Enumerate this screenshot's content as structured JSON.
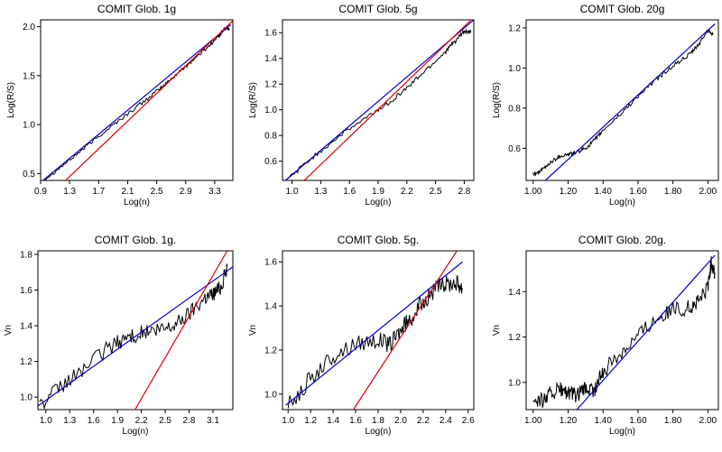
{
  "chart_data": [
    {
      "type": "line",
      "title": "COMIT Glob. 1g",
      "xlabel": "Log(n)",
      "ylabel": "Log(R/S)",
      "xlim": [
        0.9,
        3.55
      ],
      "ylim": [
        0.43,
        2.07
      ],
      "xticks": [
        0.9,
        1.3,
        1.7,
        2.1,
        2.5,
        2.9,
        3.3
      ],
      "xtick_labels": [
        "0.9",
        "1.3",
        "1.7",
        "2.1",
        "2.5",
        "2.9",
        "3.3"
      ],
      "yticks": [
        0.5,
        1.0,
        1.5,
        2.0
      ],
      "ytick_labels": [
        "0.5",
        "1.0",
        "1.5",
        "2.0"
      ],
      "series": [
        {
          "color": "#000000",
          "points": [
            [
              0.95,
              0.44
            ],
            [
              1.2,
              0.58
            ],
            [
              1.5,
              0.76
            ],
            [
              1.8,
              0.94
            ],
            [
              2.1,
              1.11
            ],
            [
              2.4,
              1.28
            ],
            [
              2.6,
              1.4
            ],
            [
              2.8,
              1.53
            ],
            [
              3.0,
              1.66
            ],
            [
              3.2,
              1.79
            ],
            [
              3.35,
              1.9
            ],
            [
              3.45,
              1.99
            ],
            [
              3.5,
              1.97
            ]
          ],
          "noise": 0.02
        },
        {
          "color": "#0000cc",
          "points": [
            [
              0.9,
              0.41
            ],
            [
              3.52,
              2.02
            ]
          ]
        },
        {
          "color": "#dd0000",
          "points": [
            [
              1.2,
              0.4
            ],
            [
              3.55,
              2.06
            ]
          ]
        }
      ]
    },
    {
      "type": "line",
      "title": "COMIT Glob. 5g",
      "xlabel": "Log(n)",
      "ylabel": "Log(R/S)",
      "xlim": [
        0.9,
        2.9
      ],
      "ylim": [
        0.45,
        1.7
      ],
      "xticks": [
        1.0,
        1.3,
        1.6,
        1.9,
        2.2,
        2.5,
        2.8
      ],
      "xtick_labels": [
        "1.0",
        "1.3",
        "1.6",
        "1.9",
        "2.2",
        "2.5",
        "2.8"
      ],
      "yticks": [
        0.6,
        0.8,
        1.0,
        1.2,
        1.4,
        1.6
      ],
      "ytick_labels": [
        "0.6",
        "0.8",
        "1.0",
        "1.2",
        "1.4",
        "1.6"
      ],
      "series": [
        {
          "color": "#000000",
          "points": [
            [
              0.95,
              0.46
            ],
            [
              1.2,
              0.62
            ],
            [
              1.5,
              0.8
            ],
            [
              1.8,
              0.95
            ],
            [
              2.0,
              1.05
            ],
            [
              2.2,
              1.17
            ],
            [
              2.4,
              1.31
            ],
            [
              2.6,
              1.45
            ],
            [
              2.7,
              1.53
            ],
            [
              2.8,
              1.61
            ],
            [
              2.87,
              1.6
            ]
          ],
          "noise": 0.018
        },
        {
          "color": "#0000cc",
          "points": [
            [
              0.9,
              0.43
            ],
            [
              2.9,
              1.7
            ]
          ]
        },
        {
          "color": "#dd0000",
          "points": [
            [
              1.1,
              0.43
            ],
            [
              2.9,
              1.72
            ]
          ]
        }
      ]
    },
    {
      "type": "line",
      "title": "COMIT Glob. 20g",
      "xlabel": "Log(n)",
      "ylabel": "Log(R/S)",
      "xlim": [
        0.96,
        2.06
      ],
      "ylim": [
        0.44,
        1.24
      ],
      "xticks": [
        1.0,
        1.2,
        1.4,
        1.6,
        1.8,
        2.0
      ],
      "xtick_labels": [
        "1.00",
        "1.20",
        "1.40",
        "1.60",
        "1.80",
        "2.00"
      ],
      "yticks": [
        0.6,
        0.8,
        1.0,
        1.2
      ],
      "ytick_labels": [
        "0.6",
        "0.8",
        "1.0",
        "1.2"
      ],
      "series": [
        {
          "color": "#000000",
          "points": [
            [
              1.0,
              0.47
            ],
            [
              1.05,
              0.49
            ],
            [
              1.1,
              0.53
            ],
            [
              1.15,
              0.56
            ],
            [
              1.2,
              0.57
            ],
            [
              1.25,
              0.58
            ],
            [
              1.3,
              0.6
            ],
            [
              1.35,
              0.64
            ],
            [
              1.4,
              0.69
            ],
            [
              1.5,
              0.77
            ],
            [
              1.6,
              0.86
            ],
            [
              1.7,
              0.94
            ],
            [
              1.8,
              1.01
            ],
            [
              1.9,
              1.07
            ],
            [
              1.95,
              1.12
            ],
            [
              2.0,
              1.19
            ],
            [
              2.03,
              1.17
            ]
          ],
          "noise": 0.01
        },
        {
          "color": "#0000cc",
          "points": [
            [
              1.07,
              0.44
            ],
            [
              2.04,
              1.22
            ]
          ]
        }
      ]
    },
    {
      "type": "line",
      "title": "COMIT Glob. 1g.",
      "xlabel": "Log(n)",
      "ylabel": "Vn",
      "xlim": [
        0.9,
        3.35
      ],
      "ylim": [
        0.93,
        1.82
      ],
      "xticks": [
        1.0,
        1.3,
        1.6,
        1.9,
        2.2,
        2.5,
        2.8,
        3.1
      ],
      "xtick_labels": [
        "1.0",
        "1.3",
        "1.6",
        "1.9",
        "2.2",
        "2.5",
        "2.8",
        "3.1"
      ],
      "yticks": [
        1.0,
        1.2,
        1.4,
        1.6,
        1.8
      ],
      "ytick_labels": [
        "1.0",
        "1.2",
        "1.4",
        "1.6",
        "1.8"
      ],
      "series": [
        {
          "color": "#000000",
          "points": [
            [
              0.92,
              0.95
            ],
            [
              1.2,
              1.06
            ],
            [
              1.5,
              1.17
            ],
            [
              1.8,
              1.28
            ],
            [
              2.0,
              1.33
            ],
            [
              2.2,
              1.36
            ],
            [
              2.4,
              1.37
            ],
            [
              2.6,
              1.4
            ],
            [
              2.8,
              1.47
            ],
            [
              3.0,
              1.56
            ],
            [
              3.1,
              1.58
            ],
            [
              3.2,
              1.62
            ],
            [
              3.28,
              1.73
            ]
          ],
          "noise": 0.045
        },
        {
          "color": "#0000cc",
          "points": [
            [
              0.9,
              0.95
            ],
            [
              3.35,
              1.73
            ]
          ]
        },
        {
          "color": "#dd0000",
          "points": [
            [
              2.12,
              0.93
            ],
            [
              3.28,
              1.82
            ]
          ]
        }
      ]
    },
    {
      "type": "line",
      "title": "COMIT Glob. 5g.",
      "xlabel": "Log(n)",
      "ylabel": "Vn",
      "xlim": [
        0.95,
        2.65
      ],
      "ylim": [
        0.93,
        1.65
      ],
      "xticks": [
        1.0,
        1.2,
        1.4,
        1.6,
        1.8,
        2.0,
        2.2,
        2.4,
        2.6
      ],
      "xtick_labels": [
        "1.0",
        "1.2",
        "1.4",
        "1.6",
        "1.8",
        "2.0",
        "2.2",
        "2.4",
        "2.6"
      ],
      "yticks": [
        1.0,
        1.2,
        1.4,
        1.6
      ],
      "ytick_labels": [
        "1.0",
        "1.2",
        "1.4",
        "1.6"
      ],
      "series": [
        {
          "color": "#000000",
          "points": [
            [
              1.0,
              0.95
            ],
            [
              1.2,
              1.07
            ],
            [
              1.4,
              1.17
            ],
            [
              1.6,
              1.23
            ],
            [
              1.8,
              1.25
            ],
            [
              1.9,
              1.22
            ],
            [
              2.0,
              1.29
            ],
            [
              2.1,
              1.35
            ],
            [
              2.2,
              1.42
            ],
            [
              2.3,
              1.47
            ],
            [
              2.4,
              1.5
            ],
            [
              2.5,
              1.51
            ],
            [
              2.55,
              1.48
            ]
          ],
          "noise": 0.04
        },
        {
          "color": "#0000cc",
          "points": [
            [
              0.98,
              0.95
            ],
            [
              2.55,
              1.6
            ]
          ]
        },
        {
          "color": "#dd0000",
          "points": [
            [
              1.58,
              0.93
            ],
            [
              2.5,
              1.65
            ]
          ]
        }
      ]
    },
    {
      "type": "line",
      "title": "COMIT Glob. 20g.",
      "xlabel": "Log(n)",
      "ylabel": "Vn",
      "xlim": [
        0.96,
        2.06
      ],
      "ylim": [
        0.88,
        1.58
      ],
      "xticks": [
        1.0,
        1.2,
        1.4,
        1.6,
        1.8,
        2.0
      ],
      "xtick_labels": [
        "1.00",
        "1.20",
        "1.40",
        "1.60",
        "1.80",
        "2.00"
      ],
      "yticks": [
        1.0,
        1.2,
        1.4
      ],
      "ytick_labels": [
        "1.0",
        "1.2",
        "1.4"
      ],
      "series": [
        {
          "color": "#000000",
          "points": [
            [
              1.0,
              0.93
            ],
            [
              1.05,
              0.92
            ],
            [
              1.1,
              0.95
            ],
            [
              1.15,
              0.97
            ],
            [
              1.2,
              0.95
            ],
            [
              1.25,
              0.94
            ],
            [
              1.3,
              0.97
            ],
            [
              1.35,
              0.96
            ],
            [
              1.4,
              1.05
            ],
            [
              1.5,
              1.13
            ],
            [
              1.6,
              1.21
            ],
            [
              1.7,
              1.28
            ],
            [
              1.8,
              1.32
            ],
            [
              1.9,
              1.33
            ],
            [
              1.95,
              1.36
            ],
            [
              2.0,
              1.42
            ],
            [
              2.02,
              1.53
            ],
            [
              2.04,
              1.48
            ]
          ],
          "noise": 0.035
        },
        {
          "color": "#0000cc",
          "points": [
            [
              1.25,
              0.88
            ],
            [
              2.04,
              1.56
            ]
          ]
        }
      ]
    }
  ]
}
